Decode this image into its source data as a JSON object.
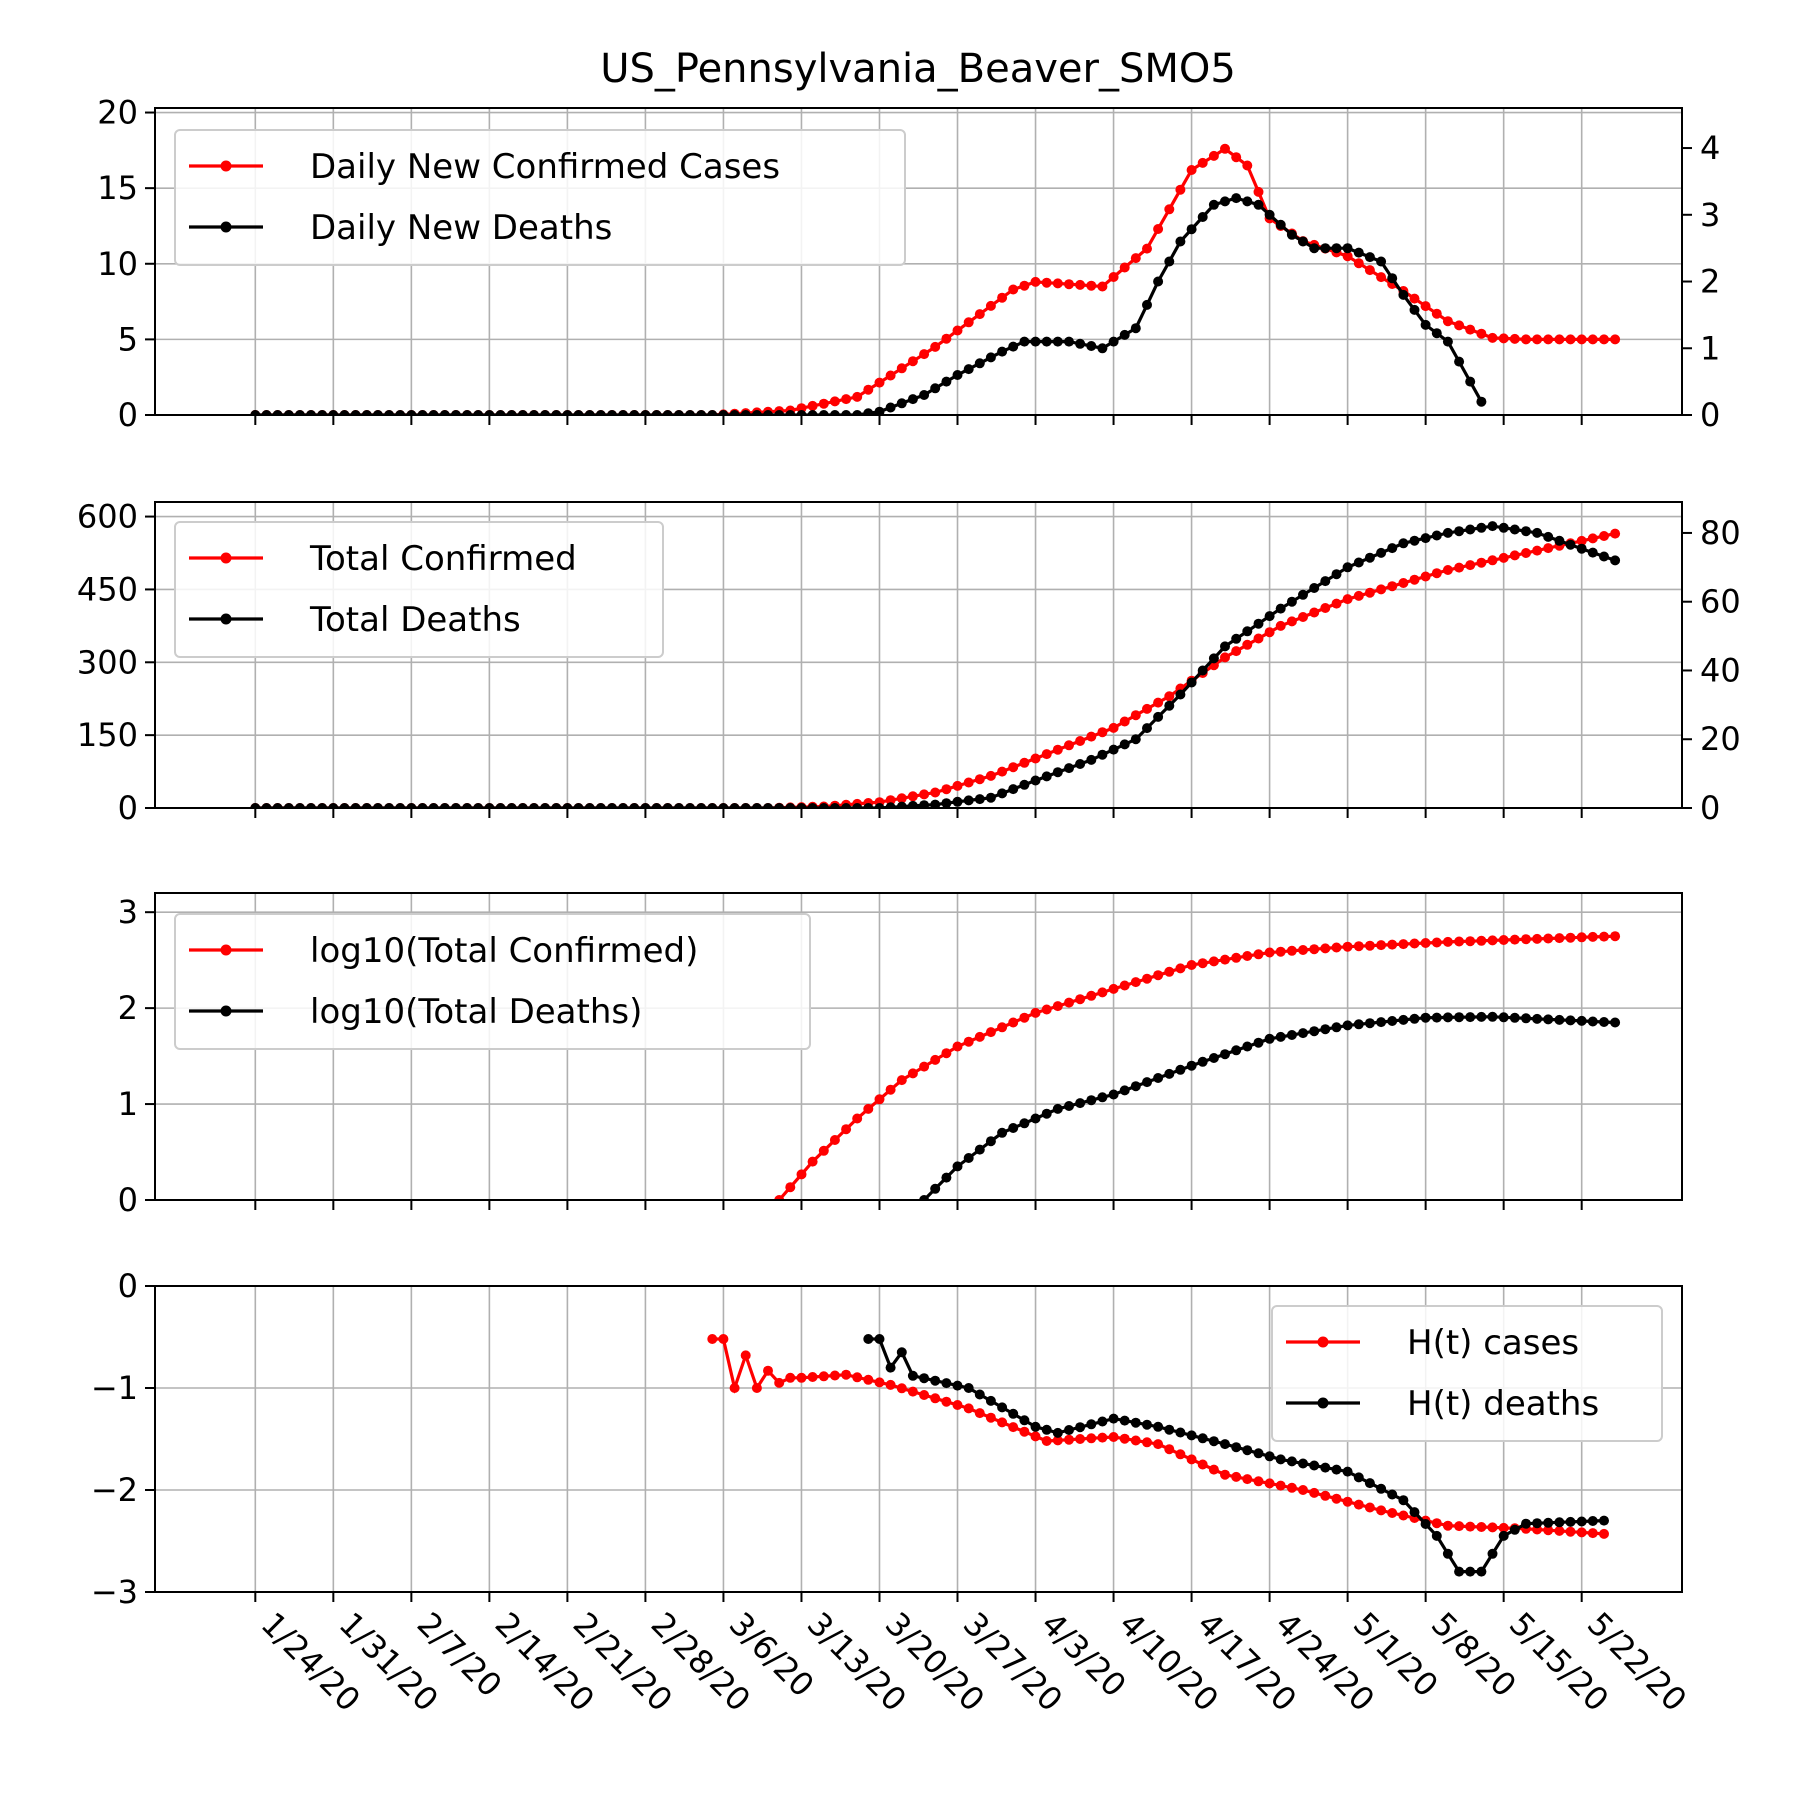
{
  "figure_title": "US_Pennsylvania_Beaver_SMO5",
  "x_tick_labels": [
    "1/24/20",
    "1/31/20",
    "2/7/20",
    "2/14/20",
    "2/21/20",
    "2/28/20",
    "3/6/20",
    "3/13/20",
    "3/20/20",
    "3/27/20",
    "4/3/20",
    "4/10/20",
    "4/17/20",
    "4/24/20",
    "5/1/20",
    "5/8/20",
    "5/15/20",
    "5/22/20"
  ],
  "colors": {
    "cases": "#ff0000",
    "deaths": "#000000",
    "grid": "#b0b0b0"
  },
  "chart_data": [
    {
      "type": "line",
      "title": "US_Pennsylvania_Beaver_SMO5",
      "xlabel": "",
      "ylabel": "",
      "x_axis": "date",
      "x_range": [
        "1/15/20",
        "5/31/20"
      ],
      "left_ylim": [
        0,
        20.3
      ],
      "right_ylim": [
        0,
        4.6
      ],
      "left_yticks": [
        0,
        5,
        10,
        15,
        20
      ],
      "right_yticks": [
        0,
        1,
        2,
        3,
        4
      ],
      "grid": true,
      "legend_position": "upper-left",
      "series": [
        {
          "name": "Daily New Confirmed Cases",
          "axis": "left",
          "color": "#ff0000",
          "start": "1/24/20",
          "end": "5/25/20",
          "knots": [
            [
              "1/24/20",
              0
            ],
            [
              "3/5/20",
              0
            ],
            [
              "3/12/20",
              0.3
            ],
            [
              "3/18/20",
              1.2
            ],
            [
              "3/25/20",
              4.5
            ],
            [
              "4/1/20",
              8.3
            ],
            [
              "4/3/20",
              8.8
            ],
            [
              "4/9/20",
              8.5
            ],
            [
              "4/13/20",
              11
            ],
            [
              "4/17/20",
              16.2
            ],
            [
              "4/20/20",
              17.6
            ],
            [
              "4/22/20",
              16.5
            ],
            [
              "4/24/20",
              13
            ],
            [
              "4/27/20",
              11.5
            ],
            [
              "5/1/20",
              10.5
            ],
            [
              "5/6/20",
              8.2
            ],
            [
              "5/10/20",
              6.2
            ],
            [
              "5/14/20",
              5.1
            ],
            [
              "5/17/20",
              5
            ],
            [
              "5/25/20",
              5
            ]
          ]
        },
        {
          "name": "Daily New Deaths",
          "axis": "right",
          "color": "#000000",
          "start": "1/24/20",
          "end": "5/13/20",
          "knots": [
            [
              "1/24/20",
              0
            ],
            [
              "3/18/20",
              0
            ],
            [
              "3/20/20",
              0.05
            ],
            [
              "3/24/20",
              0.3
            ],
            [
              "3/27/20",
              0.6
            ],
            [
              "3/31/20",
              0.95
            ],
            [
              "4/2/20",
              1.1
            ],
            [
              "4/6/20",
              1.1
            ],
            [
              "4/9/20",
              1.0
            ],
            [
              "4/12/20",
              1.3
            ],
            [
              "4/14/20",
              2.0
            ],
            [
              "4/16/20",
              2.6
            ],
            [
              "4/19/20",
              3.15
            ],
            [
              "4/21/20",
              3.25
            ],
            [
              "4/23/20",
              3.15
            ],
            [
              "4/26/20",
              2.7
            ],
            [
              "4/28/20",
              2.5
            ],
            [
              "5/1/20",
              2.5
            ],
            [
              "5/4/20",
              2.3
            ],
            [
              "5/6/20",
              1.8
            ],
            [
              "5/8/20",
              1.35
            ],
            [
              "5/10/20",
              1.1
            ],
            [
              "5/13/20",
              0.2
            ],
            [
              "5/14/20",
              0
            ]
          ]
        }
      ]
    },
    {
      "type": "line",
      "x_axis": "date",
      "x_range": [
        "1/15/20",
        "5/31/20"
      ],
      "left_ylim": [
        0,
        630
      ],
      "right_ylim": [
        0,
        89
      ],
      "left_yticks": [
        0,
        150,
        300,
        450,
        600
      ],
      "right_yticks": [
        0,
        20,
        40,
        60,
        80
      ],
      "grid": true,
      "legend_position": "upper-left",
      "series": [
        {
          "name": "Total Confirmed",
          "axis": "left",
          "color": "#ff0000",
          "start": "1/24/20",
          "end": "5/25/20",
          "knots": [
            [
              "1/24/20",
              0
            ],
            [
              "3/10/20",
              0
            ],
            [
              "3/15/20",
              3
            ],
            [
              "3/20/20",
              12
            ],
            [
              "3/25/20",
              32
            ],
            [
              "3/30/20",
              66
            ],
            [
              "4/5/20",
              120
            ],
            [
              "4/10/20",
              165
            ],
            [
              "4/15/20",
              230
            ],
            [
              "4/20/20",
              310
            ],
            [
              "4/25/20",
              375
            ],
            [
              "5/1/20",
              430
            ],
            [
              "5/10/20",
              490
            ],
            [
              "5/17/20",
              525
            ],
            [
              "5/25/20",
              565
            ]
          ]
        },
        {
          "name": "Total Deaths",
          "axis": "right",
          "color": "#000000",
          "start": "1/24/20",
          "end": "5/25/20",
          "knots": [
            [
              "1/24/20",
              0
            ],
            [
              "3/20/20",
              0
            ],
            [
              "3/25/20",
              1
            ],
            [
              "3/30/20",
              3
            ],
            [
              "4/3/20",
              8
            ],
            [
              "4/8/20",
              14
            ],
            [
              "4/12/20",
              20
            ],
            [
              "4/16/20",
              33
            ],
            [
              "4/20/20",
              47
            ],
            [
              "4/25/20",
              58
            ],
            [
              "5/1/20",
              70
            ],
            [
              "5/6/20",
              77
            ],
            [
              "5/10/20",
              80
            ],
            [
              "5/14/20",
              82
            ],
            [
              "5/18/20",
              80
            ],
            [
              "5/25/20",
              72
            ]
          ]
        }
      ]
    },
    {
      "type": "line",
      "x_axis": "date",
      "x_range": [
        "1/15/20",
        "5/31/20"
      ],
      "left_ylim": [
        0,
        3.2
      ],
      "left_yticks": [
        0,
        1,
        2,
        3
      ],
      "grid": true,
      "legend_position": "upper-left",
      "series": [
        {
          "name": "log10(Total Confirmed)",
          "axis": "left",
          "color": "#ff0000",
          "start": "3/11/20",
          "end": "5/25/20",
          "knots": [
            [
              "3/11/20",
              0
            ],
            [
              "3/14/20",
              0.4
            ],
            [
              "3/18/20",
              0.85
            ],
            [
              "3/22/20",
              1.25
            ],
            [
              "3/27/20",
              1.6
            ],
            [
              "4/3/20",
              1.95
            ],
            [
              "4/10/20",
              2.2
            ],
            [
              "4/17/20",
              2.45
            ],
            [
              "4/24/20",
              2.58
            ],
            [
              "5/1/20",
              2.64
            ],
            [
              "5/10/20",
              2.69
            ],
            [
              "5/25/20",
              2.75
            ]
          ]
        },
        {
          "name": "log10(Total Deaths)",
          "axis": "left",
          "color": "#000000",
          "start": "3/24/20",
          "end": "5/25/20",
          "knots": [
            [
              "3/24/20",
              0
            ],
            [
              "3/27/20",
              0.35
            ],
            [
              "3/31/20",
              0.7
            ],
            [
              "4/5/20",
              0.95
            ],
            [
              "4/10/20",
              1.1
            ],
            [
              "4/17/20",
              1.4
            ],
            [
              "4/24/20",
              1.68
            ],
            [
              "5/1/20",
              1.82
            ],
            [
              "5/8/20",
              1.9
            ],
            [
              "5/14/20",
              1.91
            ],
            [
              "5/25/20",
              1.85
            ]
          ]
        }
      ]
    },
    {
      "type": "line",
      "x_axis": "date",
      "x_range": [
        "1/15/20",
        "5/31/20"
      ],
      "left_ylim": [
        -3,
        0
      ],
      "left_yticks": [
        -3,
        -2,
        -1,
        0
      ],
      "grid": true,
      "legend_position": "upper-right",
      "series": [
        {
          "name": "H(t) cases",
          "axis": "left",
          "color": "#ff0000",
          "start": "3/5/20",
          "end": "5/24/20",
          "values_by_date": [
            [
              "3/5/20",
              -0.52
            ],
            [
              "3/6/20",
              -0.52
            ],
            [
              "3/7/20",
              -1.0
            ],
            [
              "3/8/20",
              -0.68
            ],
            [
              "3/9/20",
              -1.0
            ],
            [
              "3/10/20",
              -0.83
            ],
            [
              "3/11/20",
              -0.95
            ],
            [
              "3/12/20",
              -0.9
            ],
            [
              "3/13/20",
              -0.9
            ]
          ],
          "knots": [
            [
              "3/13/20",
              -0.9
            ],
            [
              "3/17/20",
              -0.87
            ],
            [
              "3/21/20",
              -0.97
            ],
            [
              "3/28/20",
              -1.2
            ],
            [
              "4/4/20",
              -1.52
            ],
            [
              "4/10/20",
              -1.48
            ],
            [
              "4/14/20",
              -1.55
            ],
            [
              "4/20/20",
              -1.85
            ],
            [
              "4/27/20",
              -2.0
            ],
            [
              "5/4/20",
              -2.2
            ],
            [
              "5/10/20",
              -2.35
            ],
            [
              "5/17/20",
              -2.38
            ],
            [
              "5/24/20",
              -2.43
            ]
          ]
        },
        {
          "name": "H(t) deaths",
          "axis": "left",
          "color": "#000000",
          "start": "3/19/20",
          "end": "5/24/20",
          "values_by_date": [
            [
              "3/19/20",
              -0.52
            ],
            [
              "3/20/20",
              -0.52
            ],
            [
              "3/21/20",
              -0.8
            ],
            [
              "3/22/20",
              -0.65
            ],
            [
              "3/23/20",
              -0.88
            ]
          ],
          "knots": [
            [
              "3/23/20",
              -0.88
            ],
            [
              "3/28/20",
              -1.0
            ],
            [
              "4/3/20",
              -1.38
            ],
            [
              "4/5/20",
              -1.44
            ],
            [
              "4/10/20",
              -1.3
            ],
            [
              "4/14/20",
              -1.38
            ],
            [
              "4/20/20",
              -1.55
            ],
            [
              "4/25/20",
              -1.7
            ],
            [
              "5/1/20",
              -1.82
            ],
            [
              "5/6/20",
              -2.1
            ],
            [
              "5/9/20",
              -2.45
            ],
            [
              "5/11/20",
              -2.8
            ],
            [
              "5/13/20",
              -2.8
            ],
            [
              "5/15/20",
              -2.45
            ],
            [
              "5/17/20",
              -2.33
            ],
            [
              "5/24/20",
              -2.3
            ]
          ]
        }
      ]
    }
  ]
}
